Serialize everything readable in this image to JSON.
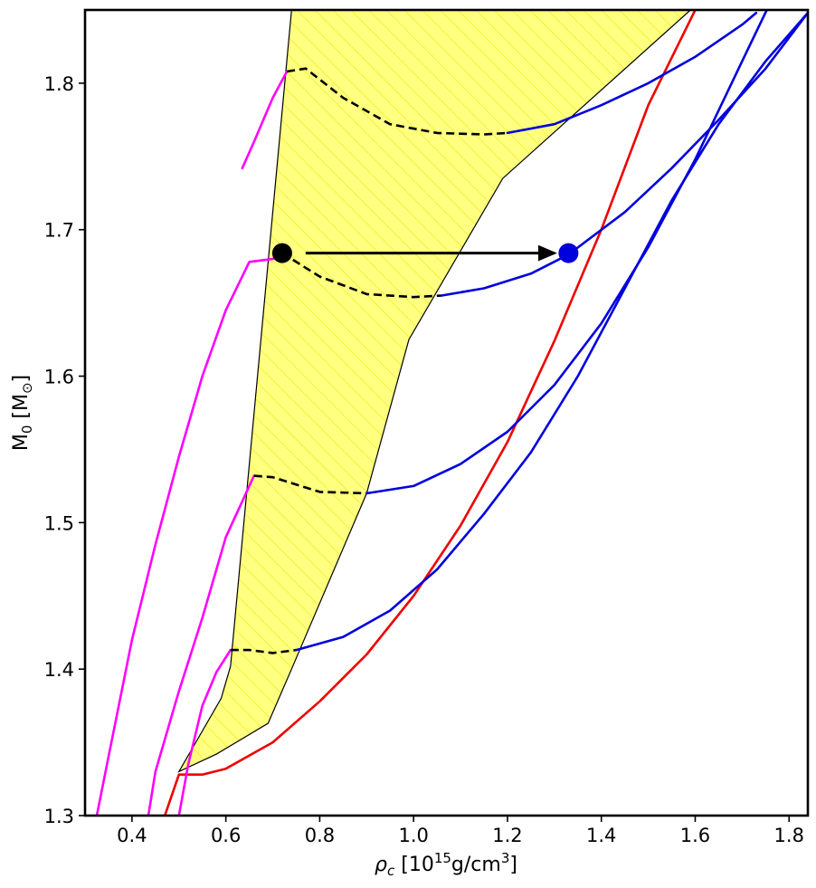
{
  "chart_data": {
    "type": "line",
    "title": "",
    "xlabel": "ρc [10^15 g/cm^3]",
    "ylabel": "M0 [M⊙]",
    "xlim": [
      0.3,
      1.84
    ],
    "ylim": [
      1.3,
      1.85
    ],
    "x_ticks": [
      "0.4",
      "0.6",
      "0.8",
      "1.0",
      "1.2",
      "1.4",
      "1.6",
      "1.8"
    ],
    "y_ticks": [
      "1.3",
      "1.4",
      "1.5",
      "1.6",
      "1.7",
      "1.8"
    ],
    "grid": false,
    "legend": null,
    "colors": {
      "magenta": "#ff00ff",
      "blue": "#0000dd",
      "red": "#ee0000",
      "black": "#000000",
      "yellow_fill": "#ffff80",
      "hatch": "#e6e600"
    },
    "shaded_region": {
      "color": "yellow",
      "hatched": true,
      "polygon": [
        [
          0.5,
          1.33
        ],
        [
          0.59,
          1.38
        ],
        [
          0.61,
          1.402
        ],
        [
          0.74,
          1.85
        ],
        [
          1.59,
          1.85
        ],
        [
          1.19,
          1.735
        ],
        [
          0.99,
          1.625
        ],
        [
          0.9,
          1.52
        ],
        [
          0.74,
          1.4
        ],
        [
          0.69,
          1.363
        ],
        [
          0.58,
          1.342
        ],
        [
          0.5,
          1.33
        ]
      ]
    },
    "series": [
      {
        "color": "red",
        "style": "solid",
        "x": [
          0.47,
          0.5,
          0.55,
          0.6,
          0.7,
          0.8,
          0.9,
          1.0,
          1.1,
          1.2,
          1.3,
          1.4,
          1.5,
          1.6,
          1.65
        ],
        "y": [
          1.3,
          1.328,
          1.328,
          1.332,
          1.35,
          1.378,
          1.41,
          1.45,
          1.498,
          1.555,
          1.624,
          1.7,
          1.785,
          1.85,
          1.88
        ]
      },
      {
        "color": "magenta",
        "style": "solid",
        "x": [
          0.325,
          0.35,
          0.4,
          0.45,
          0.5,
          0.55,
          0.6,
          0.65,
          0.7,
          0.72
        ],
        "y": [
          1.3,
          1.34,
          1.42,
          1.485,
          1.545,
          1.6,
          1.645,
          1.678,
          1.68,
          1.684
        ]
      },
      {
        "color": "magenta",
        "style": "solid",
        "x": [
          0.435,
          0.45,
          0.5,
          0.55,
          0.6,
          0.66
        ],
        "y": [
          1.3,
          1.33,
          1.385,
          1.435,
          1.49,
          1.532
        ]
      },
      {
        "color": "magenta",
        "style": "solid",
        "x": [
          0.5,
          0.52,
          0.55,
          0.58,
          0.61
        ],
        "y": [
          1.3,
          1.335,
          1.375,
          1.398,
          1.413
        ]
      },
      {
        "color": "magenta",
        "style": "solid",
        "x": [
          0.635,
          0.66,
          0.7,
          0.73
        ],
        "y": [
          1.742,
          1.76,
          1.79,
          1.808
        ]
      },
      {
        "color": "black",
        "style": "dashed",
        "x": [
          0.73,
          0.77,
          0.85,
          0.95,
          1.05,
          1.15,
          1.2
        ],
        "y": [
          1.808,
          1.81,
          1.79,
          1.772,
          1.766,
          1.765,
          1.766
        ]
      },
      {
        "color": "blue",
        "style": "solid",
        "x": [
          1.2,
          1.3,
          1.4,
          1.5,
          1.6,
          1.7,
          1.73
        ],
        "y": [
          1.766,
          1.772,
          1.785,
          1.8,
          1.818,
          1.84,
          1.848
        ]
      },
      {
        "color": "black",
        "style": "dashed",
        "x": [
          0.72,
          0.8,
          0.9,
          1.0,
          1.06
        ],
        "y": [
          1.684,
          1.668,
          1.656,
          1.654,
          1.655
        ]
      },
      {
        "color": "blue",
        "style": "solid",
        "x": [
          1.06,
          1.15,
          1.25,
          1.33,
          1.45,
          1.55,
          1.65,
          1.75,
          1.84
        ],
        "y": [
          1.655,
          1.66,
          1.67,
          1.683,
          1.712,
          1.742,
          1.775,
          1.81,
          1.848
        ]
      },
      {
        "color": "black",
        "style": "dashed",
        "x": [
          0.66,
          0.7,
          0.8,
          0.9
        ],
        "y": [
          1.532,
          1.531,
          1.521,
          1.52
        ]
      },
      {
        "color": "blue",
        "style": "solid",
        "x": [
          0.9,
          1.0,
          1.1,
          1.2,
          1.3,
          1.4,
          1.5,
          1.6,
          1.7,
          1.76
        ],
        "y": [
          1.52,
          1.525,
          1.54,
          1.562,
          1.594,
          1.636,
          1.688,
          1.748,
          1.815,
          1.855
        ]
      },
      {
        "color": "black",
        "style": "dashed",
        "x": [
          0.61,
          0.65,
          0.7,
          0.75
        ],
        "y": [
          1.413,
          1.413,
          1.411,
          1.413
        ]
      },
      {
        "color": "blue",
        "style": "solid",
        "x": [
          0.75,
          0.85,
          0.95,
          1.05,
          1.15,
          1.25,
          1.35,
          1.45,
          1.55,
          1.65,
          1.75,
          1.84
        ],
        "y": [
          1.413,
          1.422,
          1.44,
          1.468,
          1.506,
          1.548,
          1.6,
          1.66,
          1.72,
          1.772,
          1.815,
          1.848
        ]
      }
    ],
    "markers": [
      {
        "color": "black",
        "x": 0.72,
        "y": 1.684
      },
      {
        "color": "blue",
        "x": 1.33,
        "y": 1.684
      }
    ],
    "arrow": {
      "color": "black",
      "from": [
        0.77,
        1.684
      ],
      "to": [
        1.3,
        1.684
      ]
    }
  }
}
